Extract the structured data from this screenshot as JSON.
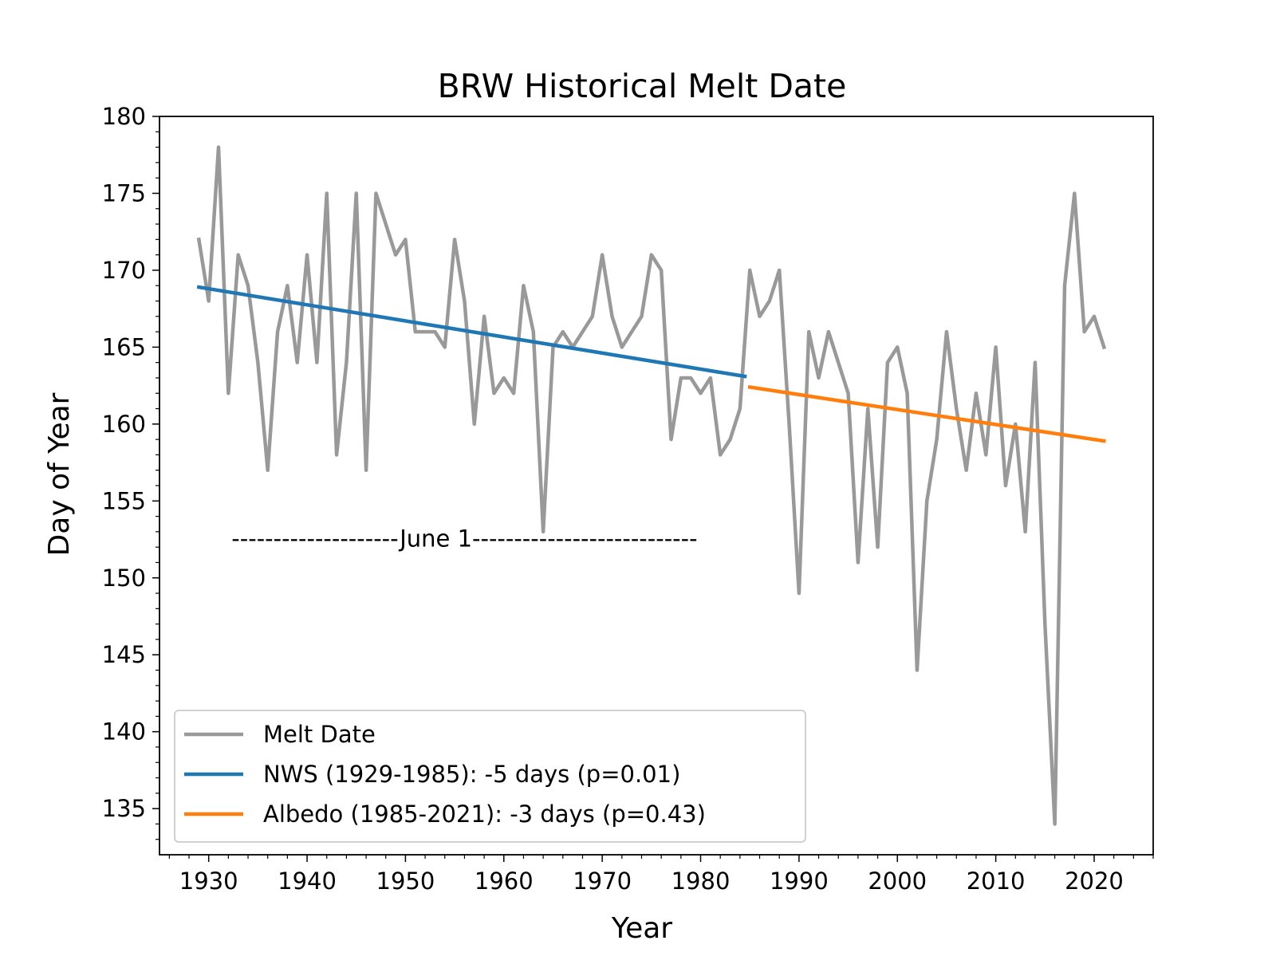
{
  "chart_data": {
    "type": "line",
    "title": "BRW Historical Melt Date",
    "xlabel": "Year",
    "ylabel": "Day of Year",
    "xlim": [
      1925,
      2026
    ],
    "ylim": [
      132,
      180
    ],
    "x_ticks": [
      1930,
      1940,
      1950,
      1960,
      1970,
      1980,
      1990,
      2000,
      2010,
      2020
    ],
    "y_ticks": [
      135,
      140,
      145,
      150,
      155,
      160,
      165,
      170,
      175,
      180
    ],
    "grid": false,
    "legend_position": "lower-left",
    "series": [
      {
        "name": "Melt Date",
        "color": "#999999",
        "x": [
          1929,
          1930,
          1931,
          1932,
          1933,
          1934,
          1935,
          1936,
          1937,
          1938,
          1939,
          1940,
          1941,
          1942,
          1943,
          1944,
          1945,
          1946,
          1947,
          1948,
          1949,
          1950,
          1951,
          1952,
          1953,
          1954,
          1955,
          1956,
          1957,
          1958,
          1959,
          1960,
          1961,
          1962,
          1963,
          1964,
          1965,
          1966,
          1967,
          1968,
          1969,
          1970,
          1971,
          1972,
          1973,
          1974,
          1975,
          1976,
          1977,
          1978,
          1979,
          1980,
          1981,
          1982,
          1983,
          1984,
          1985,
          1986,
          1987,
          1988,
          1989,
          1990,
          1991,
          1992,
          1993,
          1994,
          1995,
          1996,
          1997,
          1998,
          1999,
          2000,
          2001,
          2002,
          2003,
          2004,
          2005,
          2006,
          2007,
          2008,
          2009,
          2010,
          2011,
          2012,
          2013,
          2014,
          2015,
          2016,
          2017,
          2018,
          2019,
          2020,
          2021
        ],
        "y": [
          172,
          168,
          178,
          162,
          171,
          169,
          164,
          157,
          166,
          169,
          164,
          171,
          164,
          175,
          158,
          164,
          175,
          157,
          175,
          173,
          171,
          172,
          166,
          166,
          166,
          165,
          172,
          168,
          160,
          167,
          162,
          163,
          162,
          169,
          166,
          153,
          165,
          166,
          165,
          166,
          167,
          171,
          167,
          165,
          166,
          167,
          171,
          170,
          159,
          163,
          163,
          162,
          163,
          158,
          159,
          161,
          170,
          167,
          168,
          170,
          160,
          149,
          166,
          163,
          166,
          164,
          162,
          151,
          161,
          152,
          164,
          165,
          162,
          144,
          155,
          159,
          166,
          161,
          157,
          162,
          158,
          165,
          156,
          160,
          153,
          164,
          147,
          134,
          169,
          175,
          166,
          167,
          165
        ]
      },
      {
        "name": "NWS (1929-1985): -5 days (p=0.01)",
        "color": "#1f77b4",
        "x": [
          1929,
          1984.5
        ],
        "y": [
          168.9,
          163.1
        ]
      },
      {
        "name": "Albedo (1985-2021): -3 days (p=0.43)",
        "color": "#ff7f0e",
        "x": [
          1985,
          2021
        ],
        "y": [
          162.4,
          158.9
        ]
      }
    ],
    "annotations": [
      {
        "text": "--------------------June 1---------------------------",
        "x": 1956,
        "y": 152.5
      }
    ]
  }
}
